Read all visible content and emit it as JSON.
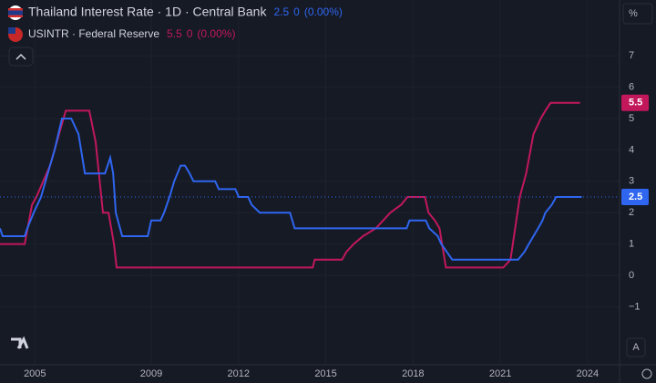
{
  "chart_data": {
    "type": "line",
    "xlim": [
      2003.8,
      2025.1
    ],
    "xticks": [
      2005,
      2009,
      2012,
      2015,
      2018,
      2021,
      2024
    ],
    "ylim": [
      -2.85,
      8.78
    ],
    "yticks": [
      {
        "value": -1,
        "label": "−1"
      },
      0,
      1,
      2,
      3,
      4,
      5,
      6,
      7
    ],
    "y_unit_button": "%",
    "auto_button": "A",
    "grid": true,
    "series": [
      {
        "name": "Thailand Interest Rate · 1D · Central Bank",
        "color": "#2f66f0",
        "change": 0,
        "change_pct_label": "(0.00%)",
        "x": [
          2003.8,
          2003.89,
          2004.65,
          2004.74,
          2004.96,
          2005.21,
          2005.52,
          2005.68,
          2005.93,
          2006.25,
          2006.5,
          2006.72,
          2007.41,
          2007.59,
          2007.69,
          2007.78,
          2008.0,
          2008.88,
          2009.0,
          2009.32,
          2009.44,
          2009.63,
          2009.79,
          2010.01,
          2010.16,
          2010.32,
          2010.45,
          2011.2,
          2011.32,
          2011.89,
          2012.01,
          2012.33,
          2012.45,
          2012.73,
          2013.77,
          2013.93,
          2017.78,
          2017.88,
          2018.44,
          2018.56,
          2018.85,
          2018.97,
          2019.16,
          2019.35,
          2021.61,
          2021.83,
          2021.98,
          2022.14,
          2022.3,
          2022.45,
          2022.55,
          2022.77,
          2022.92,
          2023.8
        ],
        "values": [
          1.5,
          1.25,
          1.25,
          1.5,
          2,
          2.5,
          3.5,
          4,
          5,
          5,
          4.5,
          3.25,
          3.25,
          3.75,
          3.25,
          2,
          1.25,
          1.25,
          1.75,
          1.75,
          2,
          2.5,
          3,
          3.5,
          3.5,
          3.25,
          3,
          3,
          2.75,
          2.75,
          2.5,
          2.5,
          2.25,
          2,
          2,
          1.5,
          1.5,
          1.75,
          1.75,
          1.5,
          1.25,
          1,
          0.75,
          0.5,
          0.5,
          0.75,
          1,
          1.25,
          1.5,
          1.75,
          2,
          2.25,
          2.5,
          2.5
        ]
      },
      {
        "name": "USINTR · Federal Reserve",
        "color": "#c2185b",
        "change": 0,
        "change_pct_label": "(0.00%)",
        "x": [
          2003.8,
          2004.65,
          2004.9,
          2005.05,
          2005.52,
          2006.06,
          2006.87,
          2007.09,
          2007.34,
          2007.53,
          2007.72,
          2007.81,
          2014.55,
          2014.62,
          2015.56,
          2015.71,
          2015.96,
          2016.28,
          2016.72,
          2016.97,
          2017.22,
          2017.59,
          2017.81,
          2018.41,
          2018.53,
          2018.75,
          2018.91,
          2019.13,
          2021.1,
          2021.35,
          2021.67,
          2021.89,
          2022.14,
          2022.39,
          2022.55,
          2022.73,
          2023.74
        ],
        "values": [
          1,
          1,
          2.25,
          2.5,
          3.5,
          5.25,
          5.25,
          4.25,
          2,
          2,
          1,
          0.25,
          0.25,
          0.5,
          0.5,
          0.75,
          1,
          1.25,
          1.5,
          1.75,
          2,
          2.25,
          2.5,
          2.5,
          2,
          1.75,
          1.5,
          0.25,
          0.25,
          0.5,
          2.5,
          3.25,
          4.5,
          5,
          5.25,
          5.5,
          5.5
        ]
      }
    ]
  }
}
